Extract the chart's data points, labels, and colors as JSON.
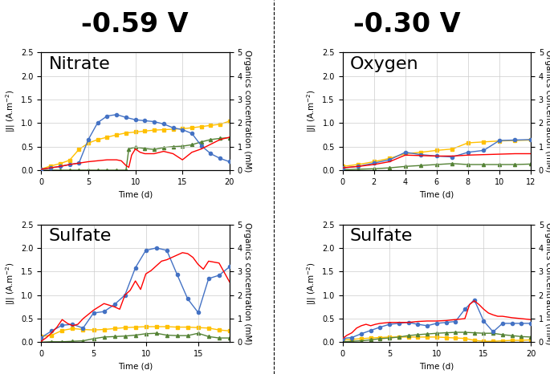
{
  "title_left": "-0.59 V",
  "title_right": "-0.30 V",
  "title_fontsize": 24,
  "subplot_label_fontsize": 16,
  "axis_label_fontsize": 7.5,
  "tick_fontsize": 7,
  "colors": {
    "blue": "#4472C4",
    "yellow": "#FFC000",
    "red": "#FF0000",
    "green": "#548235"
  },
  "nitrate": {
    "label": "Nitrate",
    "xlim": [
      0,
      20
    ],
    "xticks": [
      0,
      5,
      10,
      15,
      20
    ],
    "ylim_left": [
      0,
      2.5
    ],
    "yticks_left": [
      0.0,
      0.5,
      1.0,
      1.5,
      2.0,
      2.5
    ],
    "ylim_right": [
      0.0,
      5.0
    ],
    "yticks_right": [
      0.0,
      1.0,
      2.0,
      3.0,
      4.0,
      5.0
    ],
    "blue_x": [
      0,
      1,
      2,
      3,
      4,
      5,
      6,
      7,
      8,
      9,
      10,
      11,
      12,
      13,
      14,
      15,
      16,
      17,
      18,
      19,
      20
    ],
    "blue_y": [
      0.02,
      0.05,
      0.08,
      0.12,
      0.15,
      0.65,
      1.01,
      1.15,
      1.18,
      1.12,
      1.07,
      1.05,
      1.03,
      0.98,
      0.9,
      0.86,
      0.78,
      0.52,
      0.35,
      0.25,
      0.18
    ],
    "yellow_x": [
      0,
      1,
      2,
      3,
      4,
      5,
      6,
      7,
      8,
      9,
      10,
      11,
      12,
      13,
      14,
      15,
      16,
      17,
      18,
      19,
      20
    ],
    "yellow_y": [
      0.05,
      0.18,
      0.28,
      0.42,
      0.88,
      1.15,
      1.3,
      1.4,
      1.5,
      1.58,
      1.62,
      1.66,
      1.7,
      1.72,
      1.74,
      1.76,
      1.8,
      1.85,
      1.9,
      1.95,
      2.08
    ],
    "red_x": [
      0,
      1,
      2,
      3,
      4,
      5,
      6,
      7,
      8,
      8.5,
      9,
      9.3,
      9.6,
      10,
      10.5,
      11,
      12,
      13,
      14,
      15,
      16,
      17,
      18,
      19,
      20
    ],
    "red_y": [
      0.02,
      0.05,
      0.08,
      0.12,
      0.15,
      0.18,
      0.2,
      0.22,
      0.22,
      0.2,
      0.1,
      0.06,
      0.32,
      0.45,
      0.38,
      0.35,
      0.35,
      0.4,
      0.35,
      0.22,
      0.38,
      0.45,
      0.55,
      0.65,
      0.7
    ],
    "green_x": [
      0,
      1,
      2,
      3,
      4,
      5,
      6,
      7,
      8,
      9,
      9.3,
      10,
      11,
      12,
      13,
      14,
      15,
      16,
      17,
      18,
      19,
      20
    ],
    "green_y": [
      0.0,
      0.0,
      0.0,
      0.0,
      0.0,
      0.0,
      0.0,
      0.0,
      0.0,
      0.0,
      0.9,
      0.98,
      0.92,
      0.88,
      0.96,
      1.0,
      1.02,
      1.08,
      1.2,
      1.3,
      1.35,
      1.38
    ]
  },
  "oxygen": {
    "label": "Oxygen",
    "xlim": [
      0,
      12
    ],
    "xticks": [
      0,
      2,
      4,
      6,
      8,
      10,
      12
    ],
    "ylim_left": [
      0,
      2.5
    ],
    "yticks_left": [
      0.0,
      0.5,
      1.0,
      1.5,
      2.0,
      2.5
    ],
    "ylim_right": [
      0.0,
      5.0
    ],
    "yticks_right": [
      0.0,
      1.0,
      2.0,
      3.0,
      4.0,
      5.0
    ],
    "blue_x": [
      0,
      1,
      2,
      3,
      4,
      5,
      6,
      7,
      8,
      9,
      10,
      11,
      12
    ],
    "blue_y": [
      0.05,
      0.08,
      0.15,
      0.22,
      0.38,
      0.33,
      0.3,
      0.28,
      0.38,
      0.42,
      0.63,
      0.64,
      0.65
    ],
    "yellow_x": [
      0,
      1,
      2,
      3,
      4,
      5,
      6,
      7,
      8,
      9,
      10,
      11,
      12
    ],
    "yellow_y": [
      0.16,
      0.24,
      0.36,
      0.5,
      0.7,
      0.76,
      0.84,
      0.9,
      1.16,
      1.2,
      1.24,
      1.26,
      1.28
    ],
    "red_x": [
      0,
      1,
      2,
      3,
      4,
      5,
      6,
      7,
      8,
      9,
      10,
      11,
      12
    ],
    "red_y": [
      0.05,
      0.08,
      0.12,
      0.18,
      0.32,
      0.31,
      0.3,
      0.3,
      0.32,
      0.33,
      0.34,
      0.35,
      0.35
    ],
    "green_x": [
      0,
      1,
      2,
      3,
      4,
      5,
      6,
      7,
      8,
      9,
      10,
      11,
      12
    ],
    "green_y": [
      0.02,
      0.04,
      0.06,
      0.1,
      0.16,
      0.2,
      0.24,
      0.28,
      0.24,
      0.24,
      0.24,
      0.24,
      0.26
    ]
  },
  "sulfate_left": {
    "label": "Sulfate",
    "xlim": [
      0,
      18
    ],
    "xticks": [
      0,
      5,
      10,
      15
    ],
    "ylim_left": [
      0,
      2.5
    ],
    "yticks_left": [
      0.0,
      0.5,
      1.0,
      1.5,
      2.0,
      2.5
    ],
    "ylim_right": [
      0.0,
      5.0
    ],
    "yticks_right": [
      0.0,
      1.0,
      2.0,
      3.0,
      4.0,
      5.0
    ],
    "blue_x": [
      0,
      1,
      2,
      3,
      4,
      5,
      6,
      7,
      8,
      9,
      10,
      11,
      12,
      13,
      14,
      15,
      16,
      17,
      18
    ],
    "blue_y": [
      0.1,
      0.24,
      0.36,
      0.38,
      0.3,
      0.62,
      0.65,
      0.8,
      1.0,
      1.58,
      1.95,
      2.0,
      1.95,
      1.43,
      0.92,
      0.63,
      1.35,
      1.42,
      1.6
    ],
    "yellow_x": [
      0,
      1,
      2,
      3,
      4,
      5,
      6,
      7,
      8,
      9,
      10,
      11,
      12,
      13,
      14,
      15,
      16,
      17,
      18
    ],
    "yellow_y": [
      0.24,
      0.3,
      0.5,
      0.58,
      0.54,
      0.52,
      0.54,
      0.58,
      0.62,
      0.64,
      0.66,
      0.66,
      0.66,
      0.64,
      0.64,
      0.62,
      0.6,
      0.52,
      0.48
    ],
    "red_x": [
      0,
      0.5,
      1,
      1.5,
      2,
      2.5,
      3,
      3.5,
      4,
      5,
      6,
      7,
      7.5,
      8,
      8.5,
      9,
      9.5,
      10,
      10.5,
      11,
      11.5,
      12,
      13,
      13.5,
      14,
      14.5,
      15,
      15.5,
      16,
      17,
      18
    ],
    "red_y": [
      0.02,
      0.1,
      0.2,
      0.32,
      0.48,
      0.4,
      0.35,
      0.38,
      0.5,
      0.68,
      0.82,
      0.75,
      0.7,
      1.0,
      1.1,
      1.3,
      1.12,
      1.45,
      1.52,
      1.62,
      1.72,
      1.75,
      1.85,
      1.9,
      1.88,
      1.8,
      1.65,
      1.55,
      1.72,
      1.68,
      1.28
    ],
    "green_x": [
      0,
      1,
      2,
      3,
      4,
      5,
      6,
      7,
      8,
      9,
      10,
      11,
      12,
      13,
      14,
      15,
      16,
      17,
      18
    ],
    "green_y": [
      0.0,
      0.02,
      0.02,
      0.04,
      0.06,
      0.15,
      0.22,
      0.24,
      0.26,
      0.3,
      0.36,
      0.38,
      0.3,
      0.28,
      0.28,
      0.38,
      0.24,
      0.18,
      0.18
    ]
  },
  "sulfate_right": {
    "label": "Sulfate",
    "xlim": [
      0,
      20
    ],
    "xticks": [
      0,
      5,
      10,
      15,
      20
    ],
    "ylim_left": [
      0,
      2.5
    ],
    "yticks_left": [
      0.0,
      0.5,
      1.0,
      1.5,
      2.0,
      2.5
    ],
    "ylim_right": [
      0.0,
      5.0
    ],
    "yticks_right": [
      0.0,
      1.0,
      2.0,
      3.0,
      4.0,
      5.0
    ],
    "blue_x": [
      0,
      1,
      2,
      3,
      4,
      5,
      6,
      7,
      8,
      9,
      10,
      11,
      12,
      13,
      14,
      15,
      16,
      17,
      18,
      19,
      20
    ],
    "blue_y": [
      0.08,
      0.1,
      0.18,
      0.25,
      0.32,
      0.38,
      0.4,
      0.42,
      0.38,
      0.35,
      0.4,
      0.42,
      0.44,
      0.7,
      0.9,
      0.45,
      0.22,
      0.4,
      0.4,
      0.4,
      0.4
    ],
    "yellow_x": [
      0,
      1,
      2,
      3,
      4,
      5,
      6,
      7,
      8,
      9,
      10,
      11,
      12,
      13,
      14,
      15,
      16,
      17,
      18,
      19,
      20
    ],
    "yellow_y": [
      0.1,
      0.12,
      0.15,
      0.18,
      0.2,
      0.22,
      0.22,
      0.22,
      0.22,
      0.22,
      0.22,
      0.2,
      0.18,
      0.16,
      0.08,
      0.04,
      0.04,
      0.06,
      0.08,
      0.08,
      0.1
    ],
    "red_x": [
      0,
      0.5,
      1,
      1.5,
      2,
      2.5,
      3,
      3.5,
      4,
      5,
      6,
      7,
      8,
      9,
      10,
      11,
      12,
      13,
      13.5,
      14,
      14.5,
      15,
      15.5,
      16,
      16.5,
      17,
      18,
      19,
      20
    ],
    "red_y": [
      0.08,
      0.15,
      0.2,
      0.3,
      0.35,
      0.38,
      0.35,
      0.38,
      0.4,
      0.42,
      0.42,
      0.42,
      0.44,
      0.45,
      0.45,
      0.46,
      0.48,
      0.5,
      0.8,
      0.88,
      0.8,
      0.7,
      0.62,
      0.58,
      0.55,
      0.55,
      0.52,
      0.5,
      0.48
    ],
    "green_x": [
      0,
      1,
      2,
      3,
      4,
      5,
      6,
      7,
      8,
      9,
      10,
      11,
      12,
      13,
      14,
      15,
      16,
      17,
      18,
      19,
      20
    ],
    "green_y": [
      0.02,
      0.04,
      0.06,
      0.1,
      0.15,
      0.18,
      0.22,
      0.28,
      0.32,
      0.35,
      0.38,
      0.4,
      0.42,
      0.42,
      0.4,
      0.38,
      0.38,
      0.32,
      0.28,
      0.24,
      0.22
    ]
  },
  "divider_x": 0.498,
  "background_color": "#ffffff",
  "grid_color": "#cccccc"
}
